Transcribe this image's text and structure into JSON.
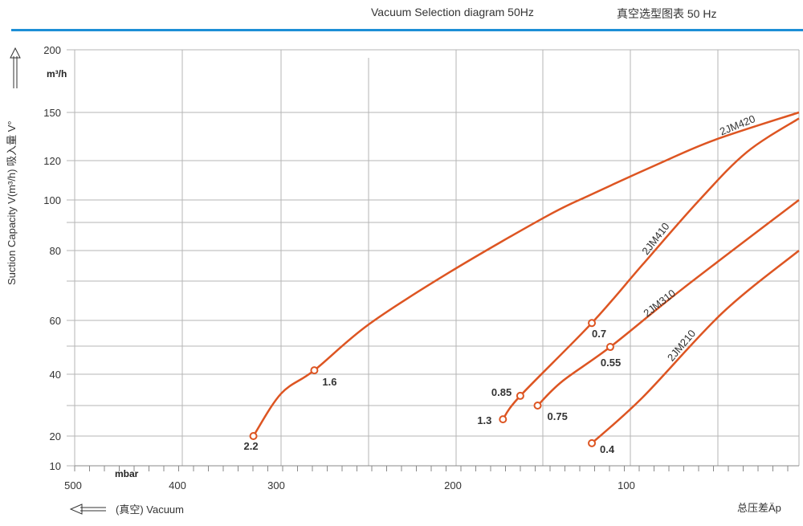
{
  "header": {
    "title_en": "Vacuum Selection diagram 50Hz",
    "title_cn": "真空选型图表 50 Hz"
  },
  "colors": {
    "accent_rule": "#1d8fd6",
    "curve": "#dd5522",
    "grid": "#b5b5b5"
  },
  "chart_data": {
    "type": "line",
    "title": "Vacuum Selection diagram 50Hz",
    "ylabel": "Suction Capacity V(m³/h) 吸入量 V°",
    "yunit": "m³/h",
    "xunit": "mbar",
    "xlabel_left": "(真空) Vacuum",
    "xlabel_right": "总压差Äp",
    "x_ticks": [
      500,
      400,
      300,
      200,
      100
    ],
    "y_ticks": [
      200,
      150,
      120,
      100,
      80,
      60,
      40,
      20,
      10
    ],
    "xlim": [
      500,
      0
    ],
    "ylim": [
      10,
      200
    ],
    "grid": true,
    "series": [
      {
        "name": "2JM420",
        "points": [
          [
            328,
            20
          ],
          [
            300,
            33.8
          ],
          [
            281,
            41.4
          ],
          [
            250,
            58.4
          ],
          [
            204,
            72.8
          ],
          [
            148,
            92.7
          ],
          [
            123,
            102.5
          ],
          [
            84,
            118.3
          ],
          [
            52,
            132.8
          ],
          [
            0,
            150
          ]
        ],
        "markers": [
          {
            "x": 328,
            "y": 20,
            "label": "2.2"
          },
          {
            "x": 281,
            "y": 41.4,
            "label": "1.6"
          }
        ]
      },
      {
        "name": "2JM410",
        "points": [
          [
            173,
            25.5
          ],
          [
            163,
            33.1
          ],
          [
            122,
            59
          ],
          [
            93,
            75.4
          ],
          [
            61,
            99.6
          ],
          [
            32,
            125.4
          ],
          [
            0,
            146.3
          ]
        ],
        "markers": [
          {
            "x": 173,
            "y": 25.5,
            "label": "1.3"
          },
          {
            "x": 163,
            "y": 33.1,
            "label": "0.85"
          },
          {
            "x": 122,
            "y": 59,
            "label": "0.7"
          }
        ]
      },
      {
        "name": "2JM310",
        "points": [
          [
            153,
            30
          ],
          [
            139,
            37.7
          ],
          [
            111.5,
            49.7
          ],
          [
            70,
            68.1
          ],
          [
            0,
            100
          ]
        ],
        "markers": [
          {
            "x": 153,
            "y": 30,
            "label": "0.75"
          },
          {
            "x": 111.5,
            "y": 49.7,
            "label": "0.55"
          }
        ]
      },
      {
        "name": "2JM210",
        "points": [
          [
            122,
            17.6
          ],
          [
            93,
            32.6
          ],
          [
            47,
            62
          ],
          [
            0,
            80
          ]
        ],
        "markers": [
          {
            "x": 122,
            "y": 17.6,
            "label": "0.4"
          }
        ]
      }
    ]
  }
}
